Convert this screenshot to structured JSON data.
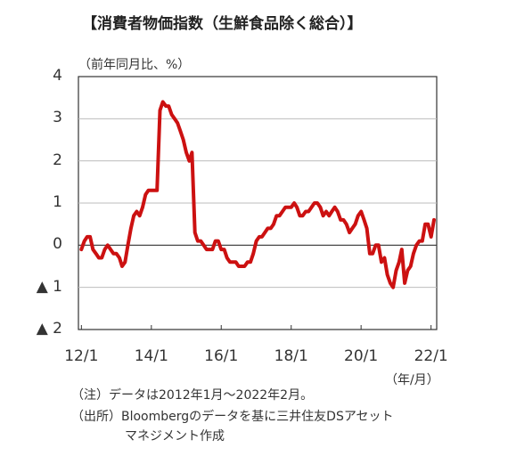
{
  "title": "【消費者物価指数（生鮮食品除く総合）】",
  "unit_label": "（前年同月比、%）",
  "x_unit_label": "（年/月）",
  "notes": [
    "（注）データは2012年1月～2022年2月。",
    "（出所）Bloombergのデータを基に三井住友DSアセット",
    "マネジメント作成"
  ],
  "colors": {
    "line": "#cc1111",
    "grid": "#bdbdbd",
    "zero": "#333333"
  },
  "chart_data": {
    "type": "line",
    "title": "【消費者物価指数（生鮮食品除く総合）】",
    "ylabel": "（前年同月比、%）",
    "xlabel": "（年/月）",
    "ylim": [
      -2,
      4
    ],
    "yticks": [
      {
        "value": 4,
        "label": "4"
      },
      {
        "value": 3,
        "label": "3"
      },
      {
        "value": 2,
        "label": "2"
      },
      {
        "value": 1,
        "label": "1"
      },
      {
        "value": 0,
        "label": "0"
      },
      {
        "value": -1,
        "label": "▲ 1"
      },
      {
        "value": -2,
        "label": "▲ 2"
      }
    ],
    "xticks": [
      "12/1",
      "14/1",
      "16/1",
      "18/1",
      "20/1",
      "22/1"
    ],
    "grid": true,
    "series": [
      {
        "x": [
          "2012-01",
          "2012-02",
          "2012-03",
          "2012-04",
          "2012-05",
          "2012-06",
          "2012-07",
          "2012-08",
          "2012-09",
          "2012-10",
          "2012-11",
          "2012-12",
          "2013-01",
          "2013-02",
          "2013-03",
          "2013-04",
          "2013-05",
          "2013-06",
          "2013-07",
          "2013-08",
          "2013-09",
          "2013-10",
          "2013-11",
          "2013-12",
          "2014-01",
          "2014-02",
          "2014-03",
          "2014-04",
          "2014-05",
          "2014-06",
          "2014-07",
          "2014-08",
          "2014-09",
          "2014-10",
          "2014-11",
          "2014-12",
          "2015-01",
          "2015-02",
          "2015-03",
          "2015-04",
          "2015-05",
          "2015-06",
          "2015-07",
          "2015-08",
          "2015-09",
          "2015-10",
          "2015-11",
          "2015-12",
          "2016-01",
          "2016-02",
          "2016-03",
          "2016-04",
          "2016-05",
          "2016-06",
          "2016-07",
          "2016-08",
          "2016-09",
          "2016-10",
          "2016-11",
          "2016-12",
          "2017-01",
          "2017-02",
          "2017-03",
          "2017-04",
          "2017-05",
          "2017-06",
          "2017-07",
          "2017-08",
          "2017-09",
          "2017-10",
          "2017-11",
          "2017-12",
          "2018-01",
          "2018-02",
          "2018-03",
          "2018-04",
          "2018-05",
          "2018-06",
          "2018-07",
          "2018-08",
          "2018-09",
          "2018-10",
          "2018-11",
          "2018-12",
          "2019-01",
          "2019-02",
          "2019-03",
          "2019-04",
          "2019-05",
          "2019-06",
          "2019-07",
          "2019-08",
          "2019-09",
          "2019-10",
          "2019-11",
          "2019-12",
          "2020-01",
          "2020-02",
          "2020-03",
          "2020-04",
          "2020-05",
          "2020-06",
          "2020-07",
          "2020-08",
          "2020-09",
          "2020-10",
          "2020-11",
          "2020-12",
          "2021-01",
          "2021-02",
          "2021-03",
          "2021-04",
          "2021-05",
          "2021-06",
          "2021-07",
          "2021-08",
          "2021-09",
          "2021-10",
          "2021-11",
          "2021-12",
          "2022-01",
          "2022-02"
        ],
        "values": [
          -0.1,
          0.1,
          0.2,
          0.2,
          -0.1,
          -0.2,
          -0.3,
          -0.3,
          -0.1,
          0.0,
          -0.1,
          -0.2,
          -0.2,
          -0.3,
          -0.5,
          -0.4,
          0.0,
          0.4,
          0.7,
          0.8,
          0.7,
          0.9,
          1.2,
          1.3,
          1.3,
          1.3,
          1.3,
          3.2,
          3.4,
          3.3,
          3.3,
          3.1,
          3.0,
          2.9,
          2.7,
          2.5,
          2.2,
          2.0,
          2.2,
          0.3,
          0.1,
          0.1,
          0.0,
          -0.1,
          -0.1,
          -0.1,
          0.1,
          0.1,
          -0.1,
          -0.1,
          -0.3,
          -0.4,
          -0.4,
          -0.4,
          -0.5,
          -0.5,
          -0.5,
          -0.4,
          -0.4,
          -0.2,
          0.1,
          0.2,
          0.2,
          0.3,
          0.4,
          0.4,
          0.5,
          0.7,
          0.7,
          0.8,
          0.9,
          0.9,
          0.9,
          1.0,
          0.9,
          0.7,
          0.7,
          0.8,
          0.8,
          0.9,
          1.0,
          1.0,
          0.9,
          0.7,
          0.8,
          0.7,
          0.8,
          0.9,
          0.8,
          0.6,
          0.6,
          0.5,
          0.3,
          0.4,
          0.5,
          0.7,
          0.8,
          0.6,
          0.4,
          -0.2,
          -0.2,
          0.0,
          0.0,
          -0.4,
          -0.3,
          -0.7,
          -0.9,
          -1.0,
          -0.6,
          -0.4,
          -0.1,
          -0.9,
          -0.6,
          -0.5,
          -0.2,
          0.0,
          0.1,
          0.1,
          0.5,
          0.5,
          0.2,
          0.6
        ]
      }
    ]
  }
}
